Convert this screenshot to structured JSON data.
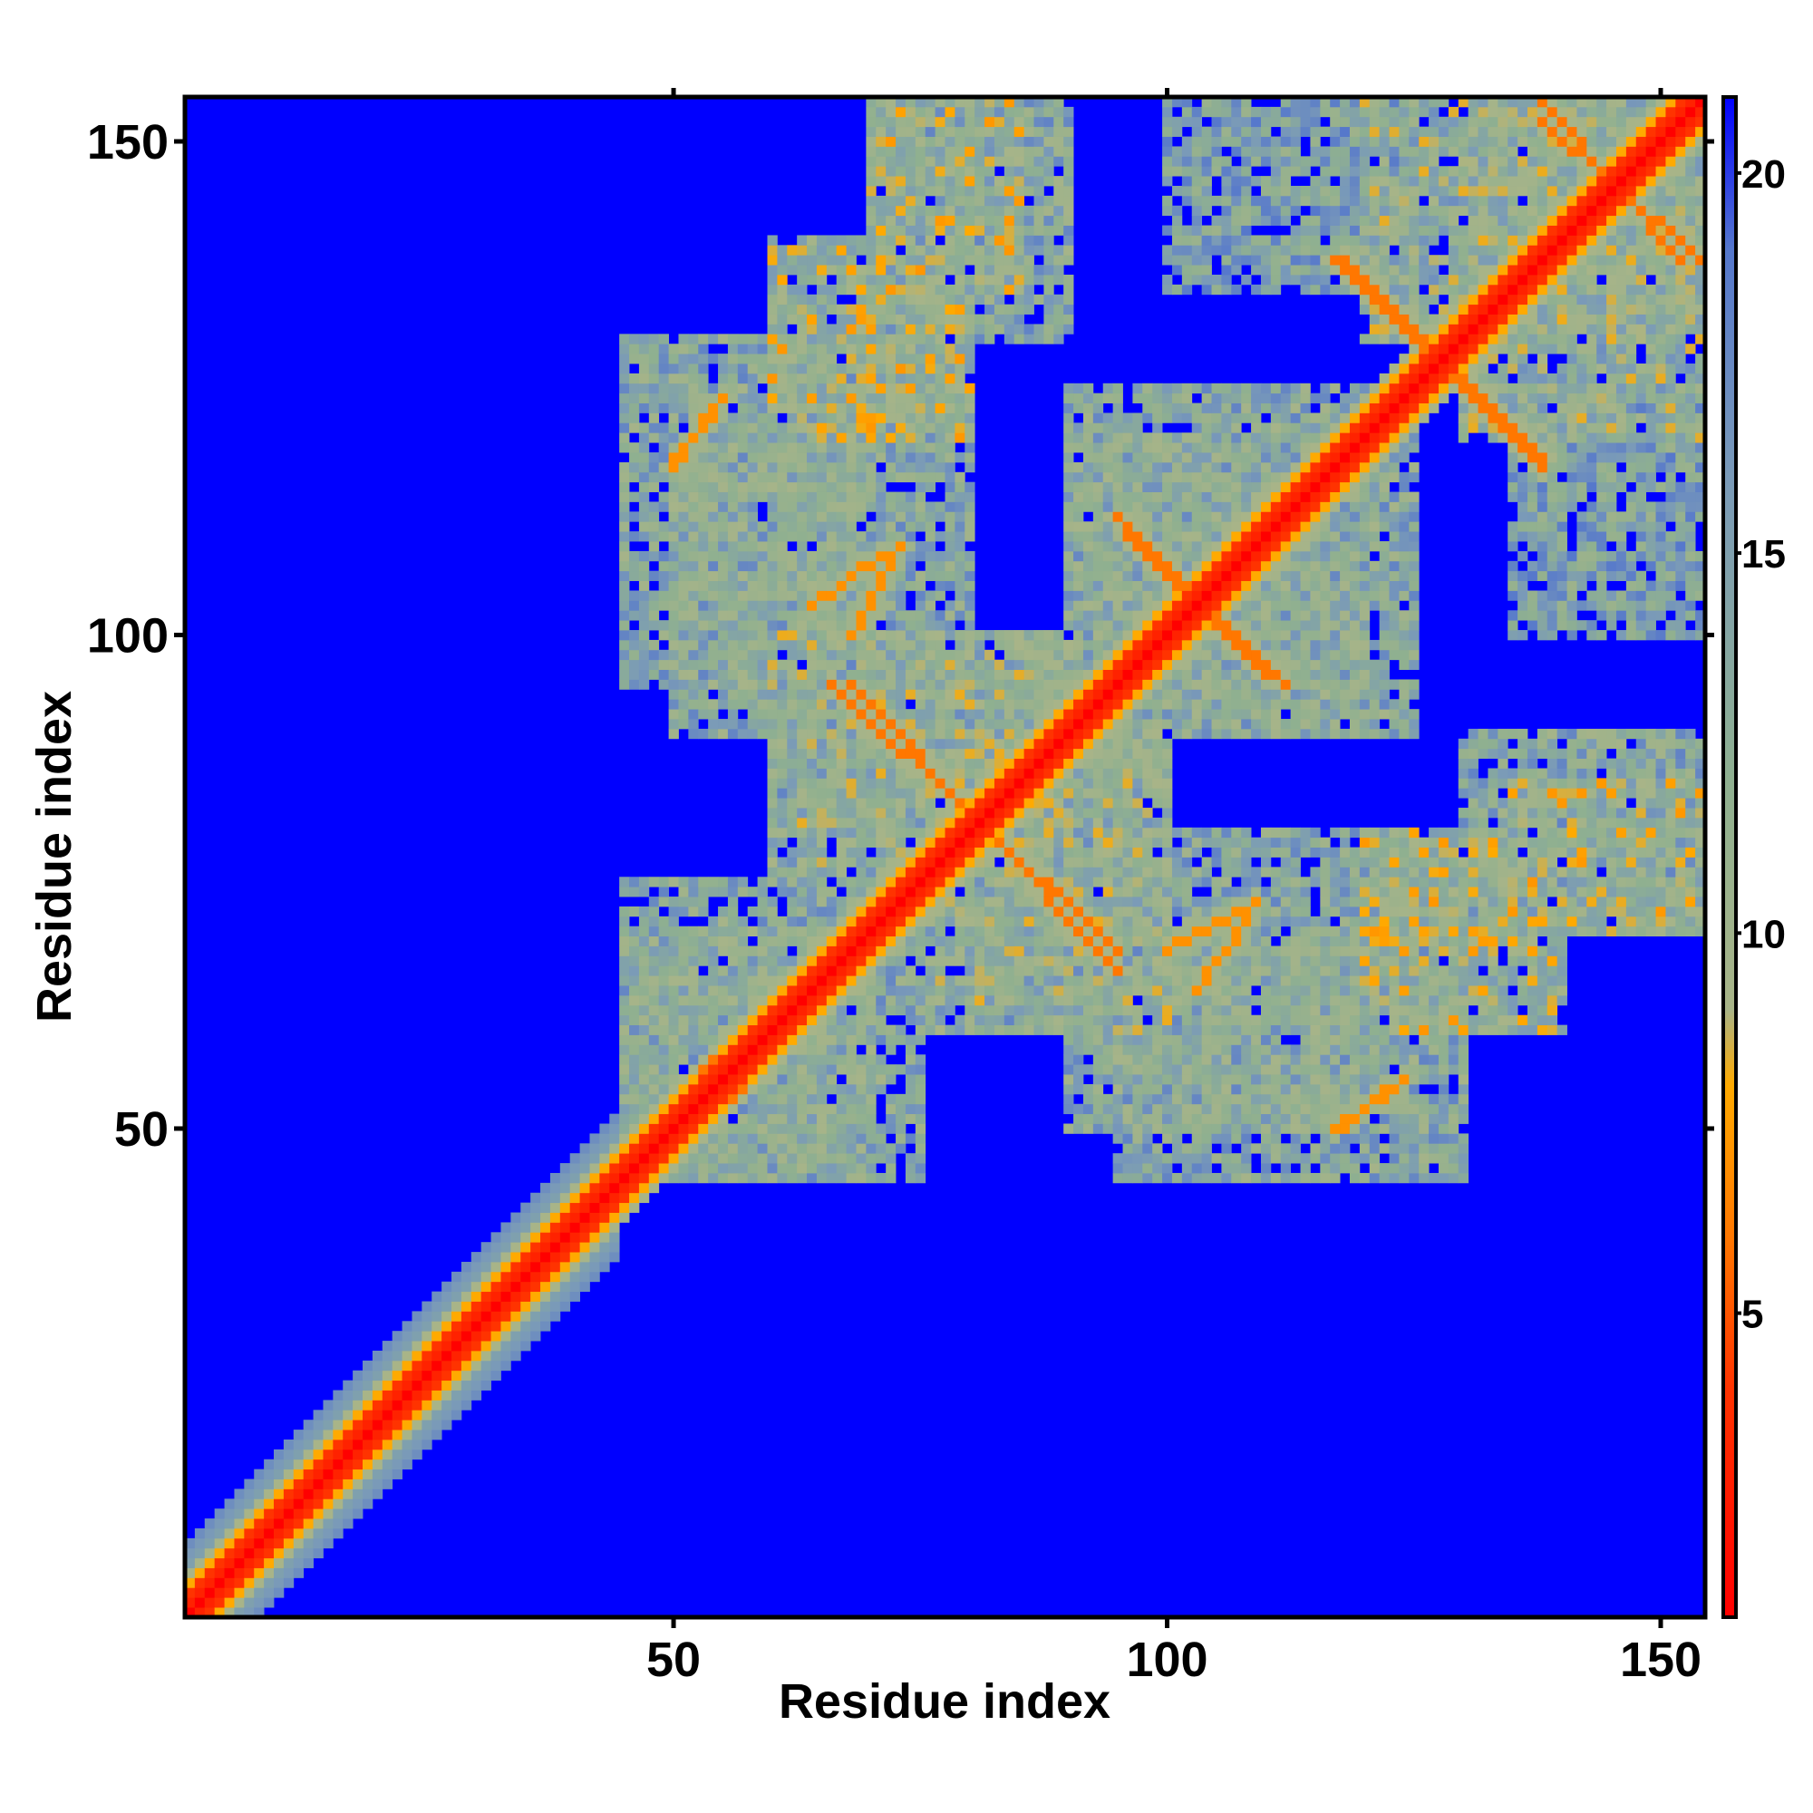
{
  "chart_data": {
    "type": "heatmap",
    "title": "",
    "xlabel": "Residue index",
    "ylabel": "Residue index",
    "xlim": [
      0.5,
      154.5
    ],
    "ylim": [
      0.5,
      154.5
    ],
    "x_ticks": [
      "50",
      "100",
      "150"
    ],
    "x_tick_values": [
      50,
      100,
      150
    ],
    "y_ticks": [
      "50",
      "100",
      "150"
    ],
    "y_tick_values": [
      50,
      100,
      150
    ],
    "colorbar": {
      "range": [
        1,
        21
      ],
      "ticks": [
        "5",
        "10",
        "15",
        "20"
      ],
      "tick_values": [
        5,
        10,
        15,
        20
      ],
      "colors": [
        {
          "value": 1,
          "color": "#ff0000"
        },
        {
          "value": 4,
          "color": "#ff3300"
        },
        {
          "value": 6,
          "color": "#ff7700"
        },
        {
          "value": 8,
          "color": "#ffaa00"
        },
        {
          "value": 9,
          "color": "#a8b488"
        },
        {
          "value": 12,
          "color": "#8fb090"
        },
        {
          "value": 16,
          "color": "#7a9ab8"
        },
        {
          "value": 19,
          "color": "#5577cc"
        },
        {
          "value": 21,
          "color": "#0000ff"
        }
      ]
    },
    "background_color": "#0000ff",
    "n_residues": 154,
    "diagonal": [
      {
        "from": 1,
        "to": 154,
        "value": 1
      }
    ],
    "contact_blocks": [
      {
        "x": [
          60,
          80
        ],
        "y": [
          120,
          140
        ],
        "value": 11
      },
      {
        "x": [
          50,
          70
        ],
        "y": [
          90,
          120
        ],
        "value": 13
      },
      {
        "x": [
          70,
          85
        ],
        "y": [
          135,
          154
        ],
        "value": 11
      },
      {
        "x": [
          90,
          120
        ],
        "y": [
          90,
          125
        ],
        "value": 13
      },
      {
        "x": [
          100,
          125
        ],
        "y": [
          135,
          154
        ],
        "value": 14
      },
      {
        "x": [
          130,
          154
        ],
        "y": [
          120,
          154
        ],
        "value": 12
      },
      {
        "x": [
          80,
          100
        ],
        "y": [
          60,
          90
        ],
        "value": 13
      },
      {
        "x": [
          95,
          130
        ],
        "y": [
          45,
          80
        ],
        "value": 13
      },
      {
        "x": [
          130,
          154
        ],
        "y": [
          70,
          90
        ],
        "value": 13
      },
      {
        "x": [
          45,
          70
        ],
        "y": [
          45,
          75
        ],
        "value": 13
      },
      {
        "x": [
          60,
          90
        ],
        "y": [
          75,
          100
        ],
        "value": 12
      }
    ],
    "strands": [
      {
        "from": [
          68,
          95
        ],
        "to": [
          95,
          66
        ],
        "value": 6
      },
      {
        "from": [
          95,
          112
        ],
        "to": [
          110,
          96
        ],
        "value": 6
      },
      {
        "from": [
          117,
          138
        ],
        "to": [
          138,
          118
        ],
        "value": 6
      },
      {
        "from": [
          138,
          152
        ],
        "to": [
          154,
          138
        ],
        "value": 6
      },
      {
        "from": [
          53,
          56
        ],
        "to": [
          63,
          62
        ],
        "value": 6
      },
      {
        "from": [
          68,
          100
        ],
        "to": [
          73,
          109
        ],
        "value": 7
      },
      {
        "from": [
          118,
          50
        ],
        "to": [
          124,
          55
        ],
        "value": 7
      },
      {
        "from": [
          103,
          64
        ],
        "to": [
          108,
          71
        ],
        "value": 7
      },
      {
        "from": [
          50,
          117
        ],
        "to": [
          55,
          124
        ],
        "value": 7
      }
    ]
  }
}
